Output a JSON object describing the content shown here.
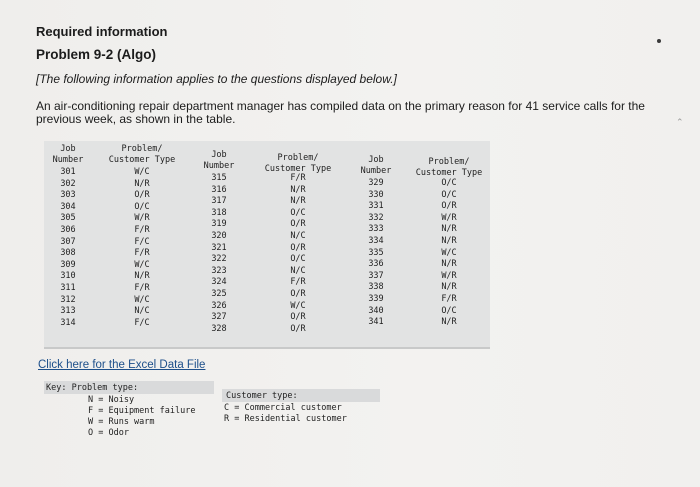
{
  "header": {
    "required": "Required information",
    "problem": "Problem 9-2 (Algo)",
    "note": "[The following information applies to the questions displayed below.]",
    "description": "An air-conditioning repair department manager has compiled data on the primary reason for 41 service calls for the previous week, as shown in the table."
  },
  "table": {
    "headers": {
      "job_1": "Job\nNumber",
      "type_1": "Problem/\nCustomer Type",
      "job_2": "Job\nNumber",
      "type_2": "Problem/\nCustomer Type",
      "job_3": "Job\nNumber",
      "type_3": "Problem/\nCustomer Type"
    },
    "group1": {
      "jobs": [
        "301",
        "302",
        "303",
        "304",
        "305",
        "306",
        "307",
        "308",
        "309",
        "310",
        "311",
        "312",
        "313",
        "314"
      ],
      "types": [
        "W/C",
        "N/R",
        "O/R",
        "O/C",
        "W/R",
        "F/R",
        "F/C",
        "F/R",
        "W/C",
        "N/R",
        "F/R",
        "W/C",
        "N/C",
        "F/C"
      ]
    },
    "group2": {
      "jobs": [
        "315",
        "316",
        "317",
        "318",
        "319",
        "320",
        "321",
        "322",
        "323",
        "324",
        "325",
        "326",
        "327",
        "328"
      ],
      "types": [
        "F/R",
        "N/R",
        "N/R",
        "O/C",
        "O/R",
        "N/C",
        "O/R",
        "O/C",
        "N/C",
        "F/R",
        "O/R",
        "W/C",
        "O/R",
        "O/R"
      ]
    },
    "group3": {
      "jobs": [
        "329",
        "330",
        "331",
        "332",
        "333",
        "334",
        "335",
        "336",
        "337",
        "338",
        "339",
        "340",
        "341"
      ],
      "types": [
        "O/C",
        "O/C",
        "O/R",
        "W/R",
        "N/R",
        "N/R",
        "W/C",
        "N/R",
        "W/R",
        "N/R",
        "F/R",
        "O/C",
        "N/R"
      ]
    }
  },
  "link": "Click here for the Excel Data File",
  "key": {
    "title": "Key: Problem type:",
    "items": [
      "N = Noisy",
      "F = Equipment failure",
      "W = Runs warm",
      "O = Odor"
    ],
    "customer_title": "Customer type:",
    "customer_items": [
      "C = Commercial customer",
      "R = Residential customer"
    ]
  }
}
